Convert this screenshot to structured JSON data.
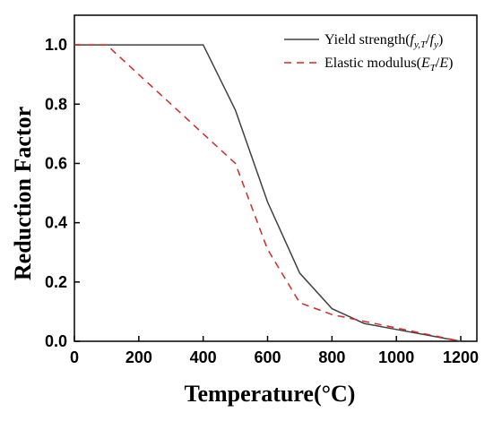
{
  "chart_data": {
    "type": "line",
    "xlabel": "Temperature(°C)",
    "ylabel": "Reduction Factor",
    "xlim": [
      0,
      1250
    ],
    "ylim": [
      0,
      1.1
    ],
    "xticks": [
      0,
      200,
      400,
      600,
      800,
      1000,
      1200
    ],
    "yticks": [
      0.0,
      0.2,
      0.4,
      0.6,
      0.8,
      1.0
    ],
    "xtick_labels": [
      "0",
      "200",
      "400",
      "600",
      "800",
      "1000",
      "1200"
    ],
    "ytick_labels": [
      "0.0",
      "0.2",
      "0.4",
      "0.6",
      "0.8",
      "1.0"
    ],
    "grid": false,
    "legend_position": "top-right",
    "series": [
      {
        "name": "Yield strength(f_{y,T}/f_y)",
        "legend_label": {
          "text": "Yield strength(",
          "sym1": "f",
          "sub1": "y,T",
          "slash": "/",
          "sym2": "f",
          "sub2": "y",
          "close": ")"
        },
        "color": "#404040",
        "style": "solid",
        "x": [
          0,
          100,
          200,
          300,
          400,
          500,
          600,
          700,
          800,
          900,
          1000,
          1100,
          1200
        ],
        "y": [
          1.0,
          1.0,
          1.0,
          1.0,
          1.0,
          0.78,
          0.47,
          0.23,
          0.11,
          0.06,
          0.04,
          0.02,
          0.0
        ]
      },
      {
        "name": "Elastic modulus(E_T/E)",
        "legend_label": {
          "text": "Elastic modulus(",
          "sym1": "E",
          "sub1": "T",
          "slash": "/",
          "sym2": "E",
          "sub2": "",
          "close": ")"
        },
        "color": "#d62728",
        "style": "dashed",
        "x": [
          0,
          100,
          200,
          300,
          400,
          500,
          600,
          700,
          800,
          900,
          1000,
          1100,
          1200
        ],
        "y": [
          1.0,
          1.0,
          0.9,
          0.8,
          0.7,
          0.6,
          0.31,
          0.13,
          0.09,
          0.0675,
          0.045,
          0.0225,
          0.0
        ]
      }
    ]
  }
}
